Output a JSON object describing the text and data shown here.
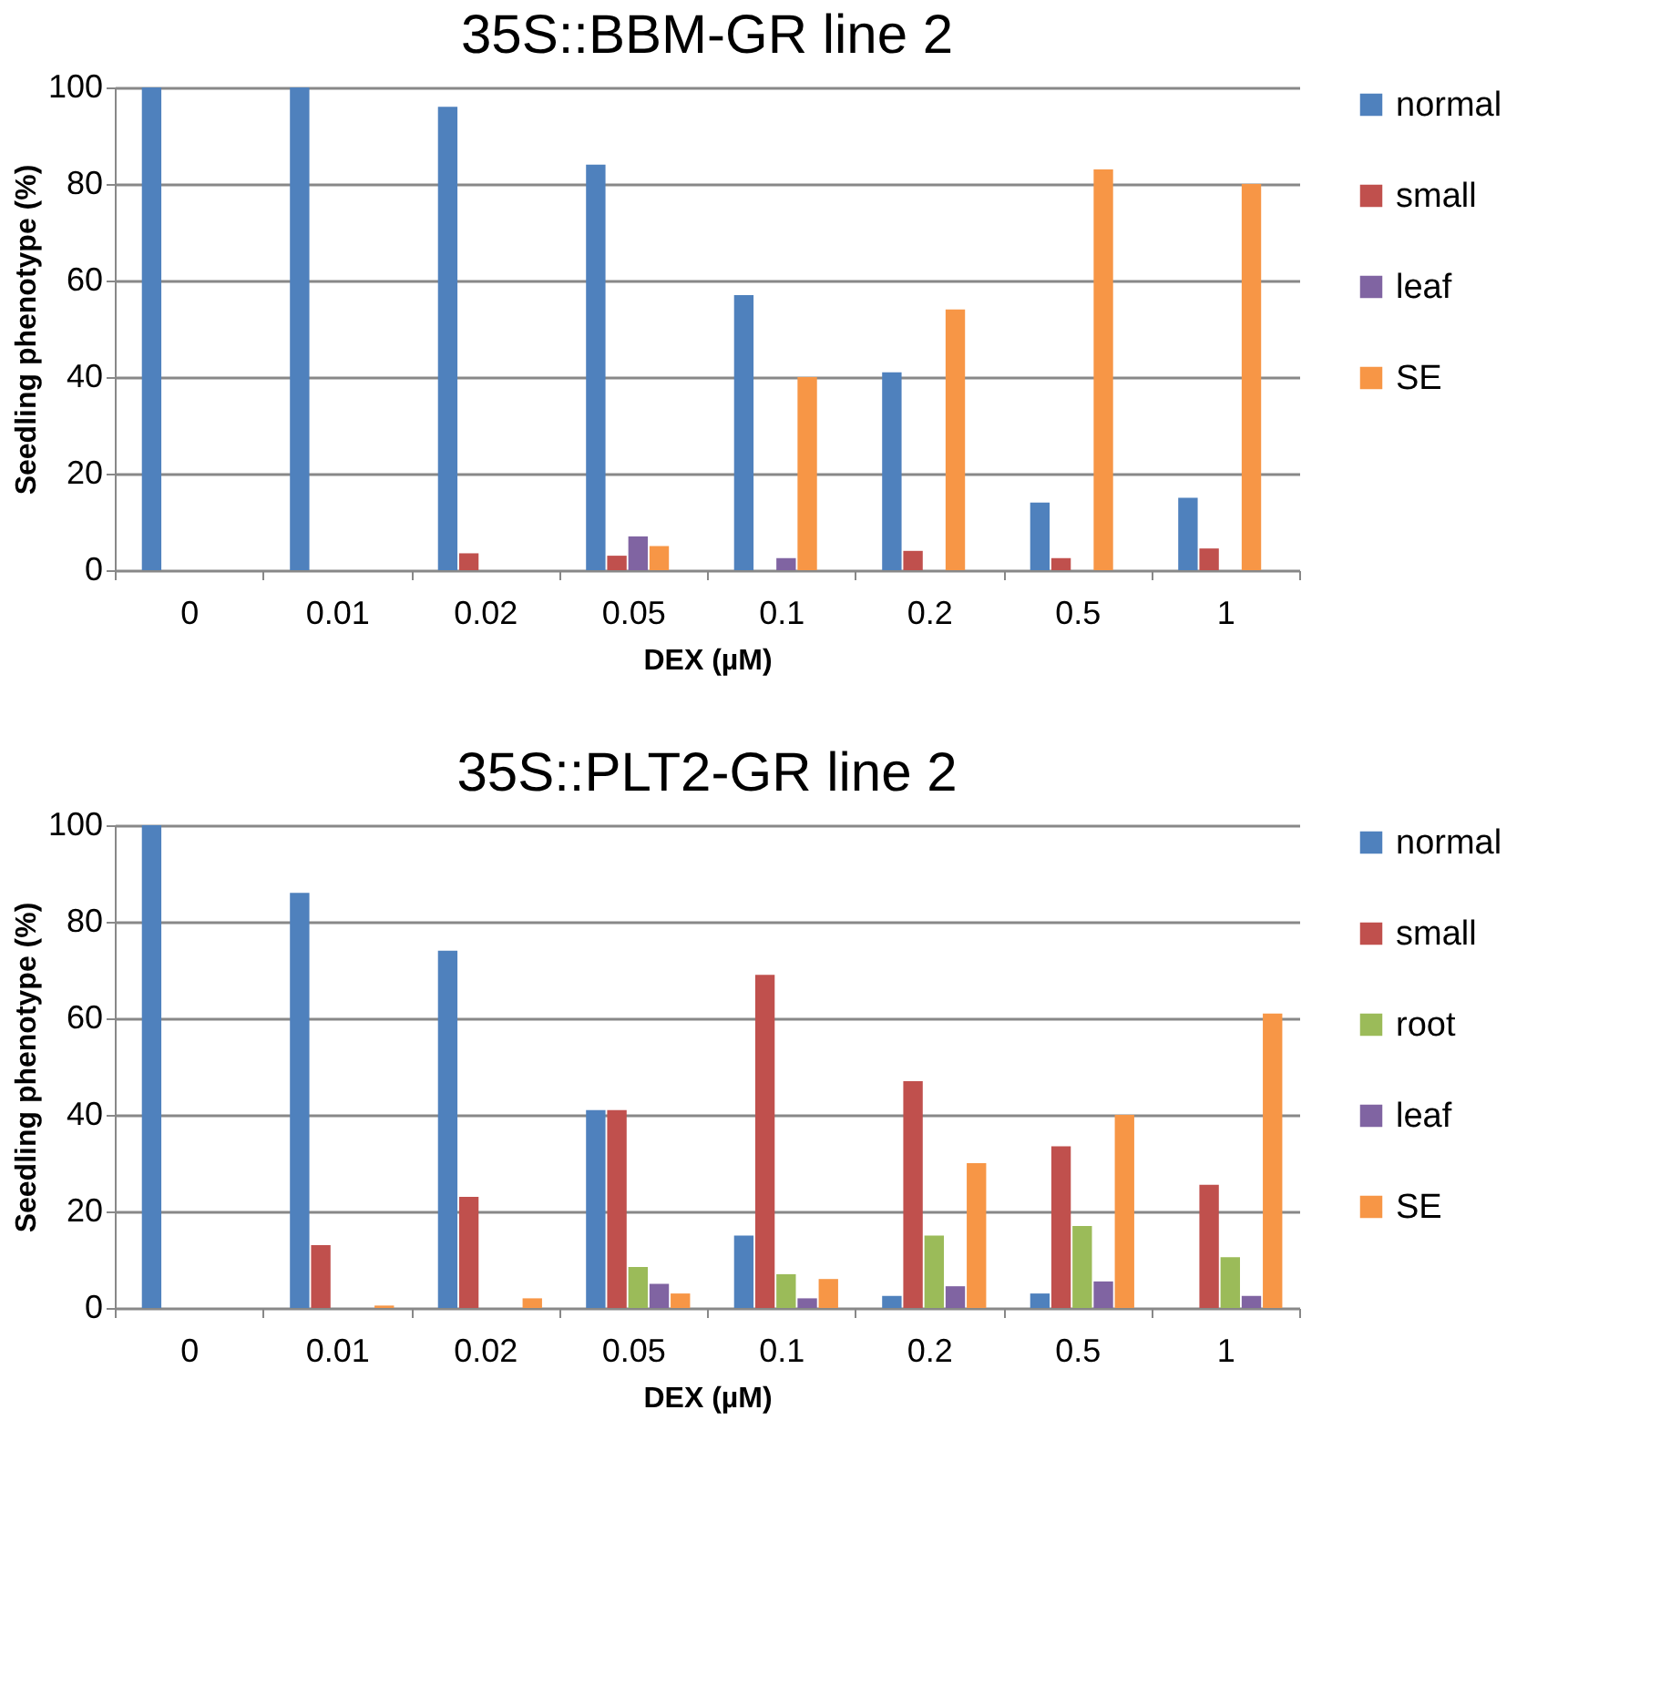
{
  "chart_data": [
    {
      "type": "bar",
      "title": "35S::BBM-GR line 2",
      "xlabel": "DEX (µM)",
      "ylabel": "Seedling phenotype (%)",
      "categories": [
        "0",
        "0.01",
        "0.02",
        "0.05",
        "0.1",
        "0.2",
        "0.5",
        "1"
      ],
      "ylim": [
        0,
        100
      ],
      "yticks": [
        0,
        20,
        40,
        60,
        80,
        100
      ],
      "grid": "y",
      "legend": "right",
      "series": [
        {
          "name": "normal",
          "color": "#4f81bd",
          "values": [
            100,
            100,
            96,
            84,
            57,
            41,
            14,
            15
          ]
        },
        {
          "name": "small",
          "color": "#c0504d",
          "values": [
            0,
            0,
            3.5,
            3,
            0,
            4,
            2.5,
            4.5
          ]
        },
        {
          "name": "leaf",
          "color": "#8064a2",
          "values": [
            0,
            0,
            0,
            7,
            2.5,
            0,
            0,
            0
          ]
        },
        {
          "name": "SE",
          "color": "#f79646",
          "values": [
            0,
            0,
            0,
            5,
            40,
            54,
            83,
            80
          ]
        }
      ]
    },
    {
      "type": "bar",
      "title": "35S::PLT2-GR line 2",
      "xlabel": "DEX (µM)",
      "ylabel": "Seedling phenotype (%)",
      "categories": [
        "0",
        "0.01",
        "0.02",
        "0.05",
        "0.1",
        "0.2",
        "0.5",
        "1"
      ],
      "ylim": [
        0,
        100
      ],
      "yticks": [
        0,
        20,
        40,
        60,
        80,
        100
      ],
      "grid": "y",
      "legend": "right",
      "series": [
        {
          "name": "normal",
          "color": "#4f81bd",
          "values": [
            100,
            86,
            74,
            41,
            15,
            2.5,
            3,
            0
          ]
        },
        {
          "name": "small",
          "color": "#c0504d",
          "values": [
            0,
            13,
            23,
            41,
            69,
            47,
            33.5,
            25.5
          ]
        },
        {
          "name": "root",
          "color": "#9bbb59",
          "values": [
            0,
            0,
            0,
            8.5,
            7,
            15,
            17,
            10.5
          ]
        },
        {
          "name": "leaf",
          "color": "#8064a2",
          "values": [
            0,
            0,
            0,
            5,
            2,
            4.5,
            5.5,
            2.5
          ]
        },
        {
          "name": "SE",
          "color": "#f79646",
          "values": [
            0,
            0.5,
            2,
            3,
            6,
            30,
            40,
            61
          ]
        }
      ]
    }
  ]
}
